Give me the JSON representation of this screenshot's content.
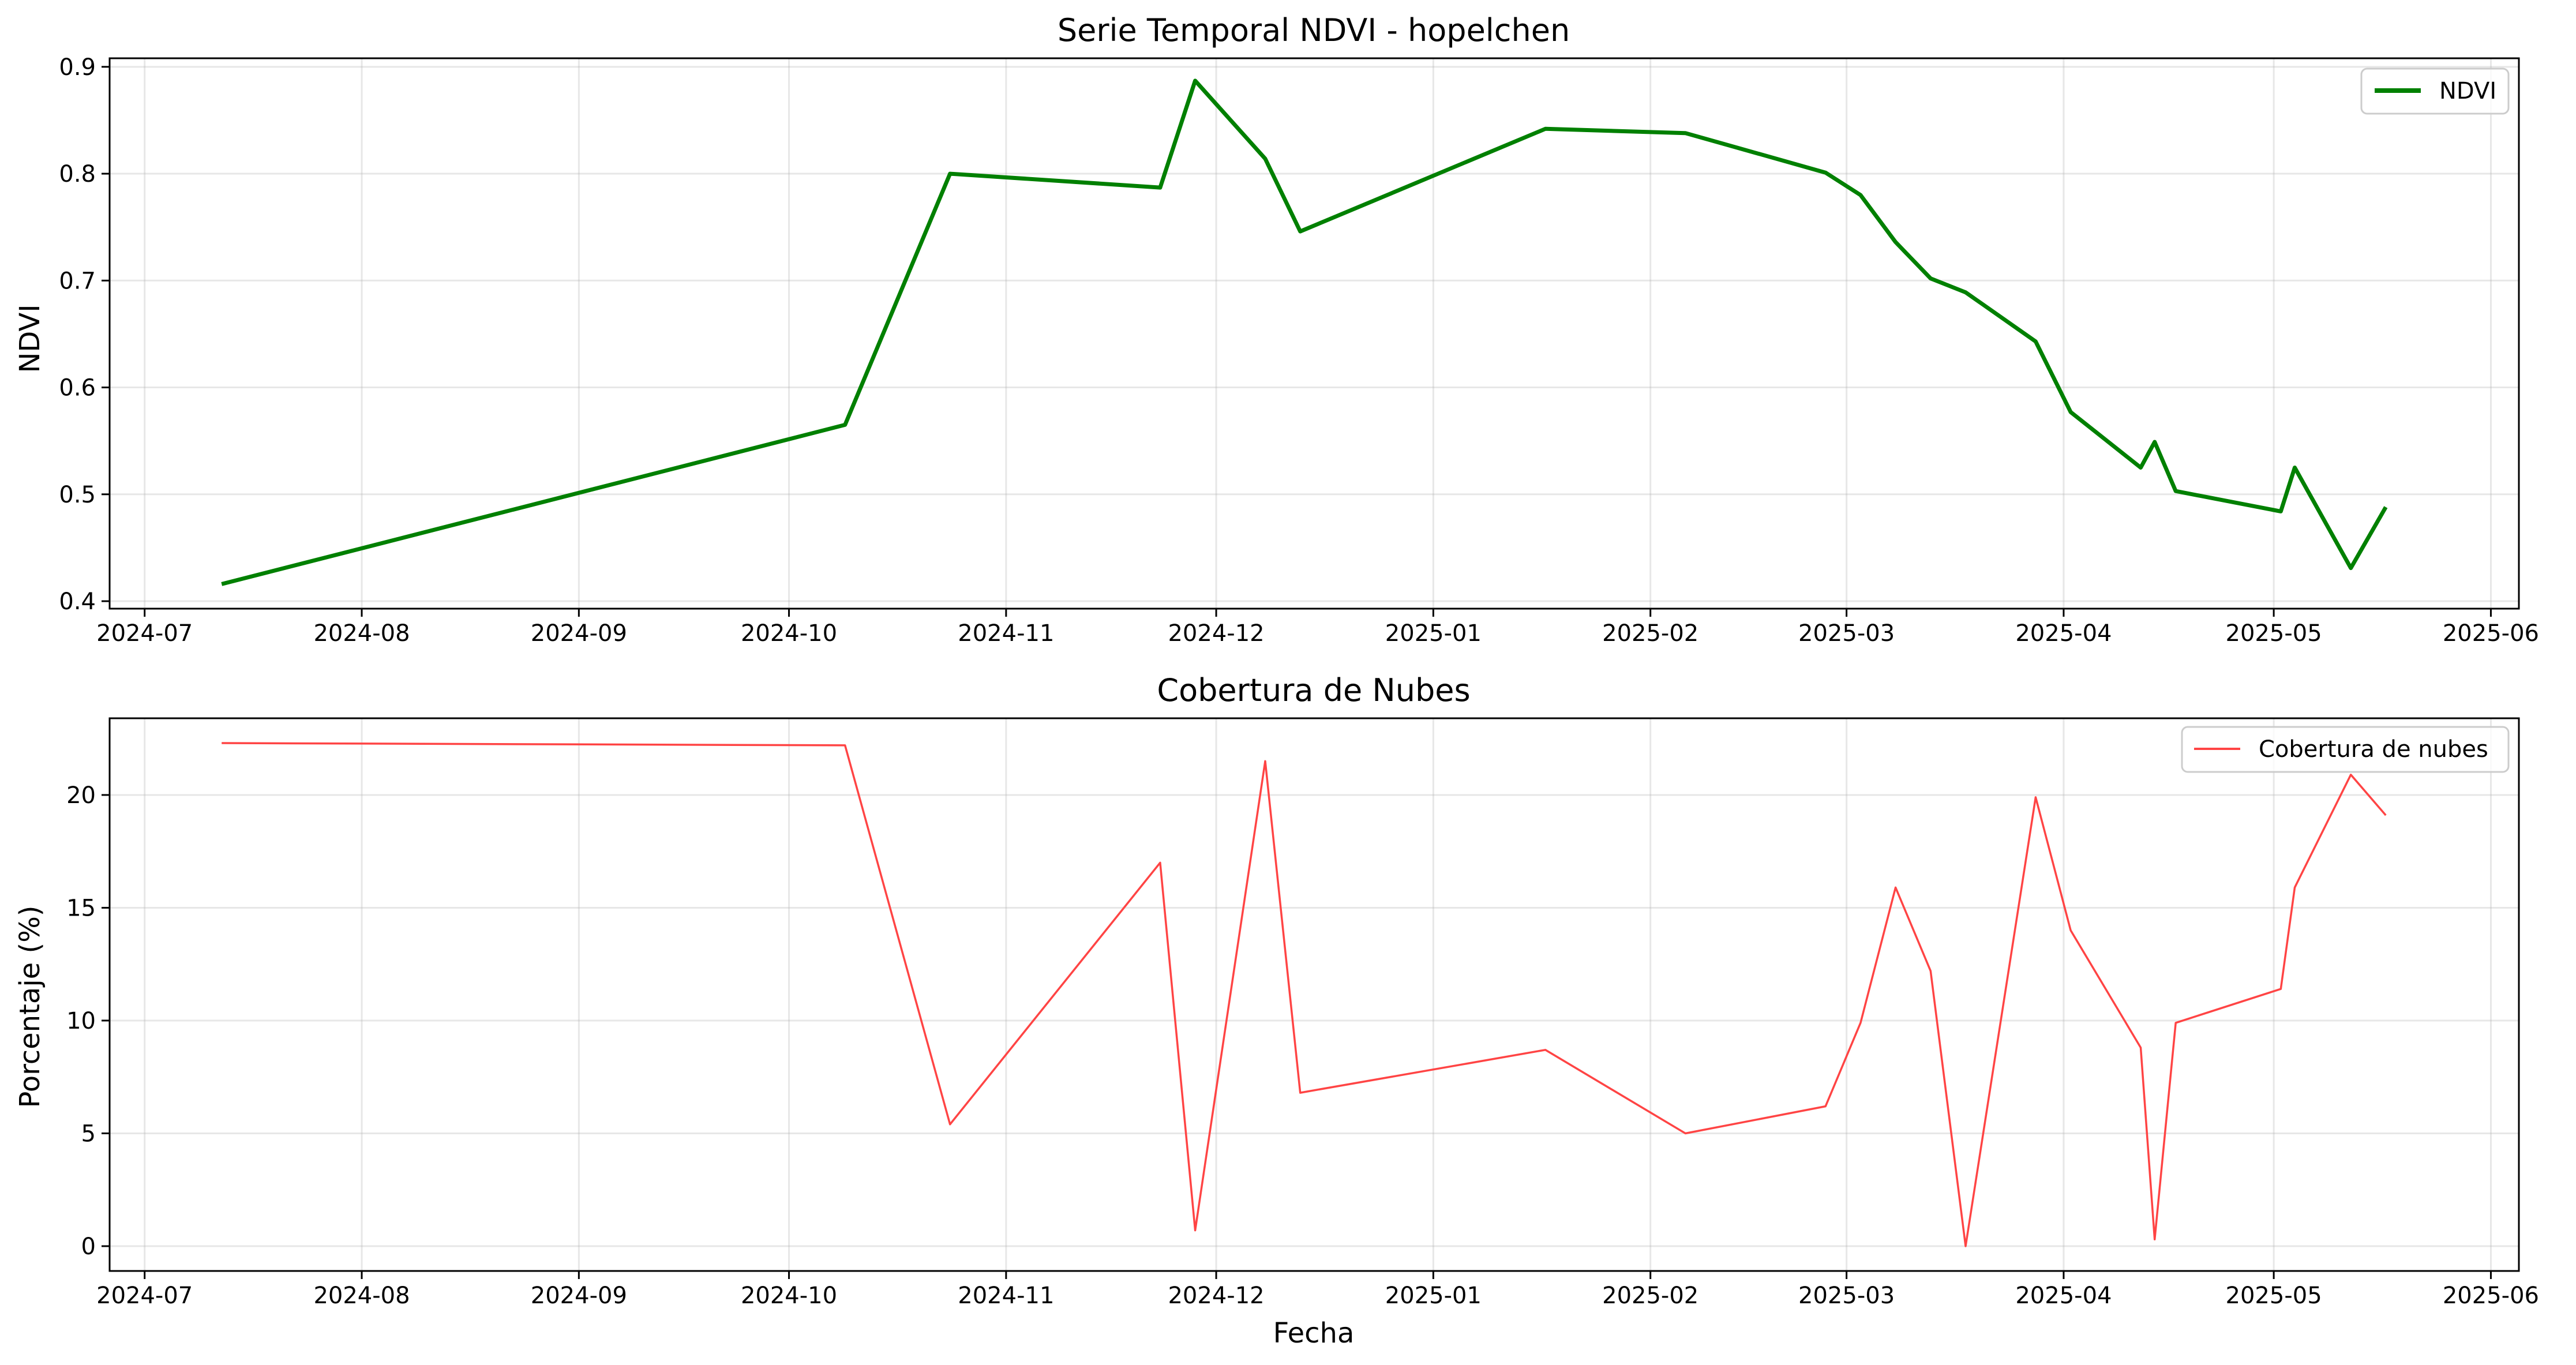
{
  "chart_data": [
    {
      "type": "line",
      "title": "Serie Temporal NDVI - hopelchen",
      "xlabel": "",
      "ylabel": "NDVI",
      "xlim": [
        "2024-06-26",
        "2025-06-05"
      ],
      "ylim": [
        0.393,
        0.908
      ],
      "grid": true,
      "legend": "top-right",
      "x_ticks": [
        "2024-07",
        "2024-08",
        "2024-09",
        "2024-10",
        "2024-11",
        "2024-12",
        "2025-01",
        "2025-02",
        "2025-03",
        "2025-04",
        "2025-05",
        "2025-06"
      ],
      "y_ticks": [
        "0.4",
        "0.5",
        "0.6",
        "0.7",
        "0.8",
        "0.9"
      ],
      "series": [
        {
          "name": "NDVI",
          "color": "#008000",
          "x": [
            "2024-07-12",
            "2024-10-09",
            "2024-10-24",
            "2024-11-23",
            "2024-11-28",
            "2024-12-08",
            "2024-12-13",
            "2025-01-17",
            "2025-02-06",
            "2025-02-26",
            "2025-03-03",
            "2025-03-08",
            "2025-03-13",
            "2025-03-18",
            "2025-03-28",
            "2025-04-02",
            "2025-04-12",
            "2025-04-14",
            "2025-04-17",
            "2025-05-02",
            "2025-05-04",
            "2025-05-12",
            "2025-05-17"
          ],
          "y": [
            0.416,
            0.565,
            0.8,
            0.787,
            0.887,
            0.814,
            0.746,
            0.842,
            0.838,
            0.801,
            0.78,
            0.736,
            0.702,
            0.689,
            0.643,
            0.577,
            0.525,
            0.549,
            0.503,
            0.484,
            0.525,
            0.431,
            0.488
          ]
        }
      ]
    },
    {
      "type": "line",
      "title": "Cobertura de Nubes",
      "xlabel": "Fecha",
      "ylabel": "Porcentaje (%)",
      "xlim": [
        "2024-06-26",
        "2025-06-05"
      ],
      "ylim": [
        -1.1,
        23.4
      ],
      "grid": true,
      "legend": "top-right",
      "x_ticks": [
        "2024-07",
        "2024-08",
        "2024-09",
        "2024-10",
        "2024-11",
        "2024-12",
        "2025-01",
        "2025-02",
        "2025-03",
        "2025-04",
        "2025-05",
        "2025-06"
      ],
      "y_ticks": [
        "0",
        "5",
        "10",
        "15",
        "20"
      ],
      "series": [
        {
          "name": "Cobertura de nubes",
          "color": "#ff4444",
          "x": [
            "2024-07-12",
            "2024-10-09",
            "2024-10-24",
            "2024-11-23",
            "2024-11-28",
            "2024-12-08",
            "2024-12-13",
            "2025-01-17",
            "2025-02-06",
            "2025-02-26",
            "2025-03-03",
            "2025-03-08",
            "2025-03-13",
            "2025-03-18",
            "2025-03-28",
            "2025-04-02",
            "2025-04-12",
            "2025-04-14",
            "2025-04-17",
            "2025-05-02",
            "2025-05-04",
            "2025-05-12",
            "2025-05-17"
          ],
          "y": [
            22.3,
            22.2,
            5.4,
            17.0,
            0.7,
            21.5,
            6.8,
            8.7,
            5.0,
            6.2,
            9.9,
            15.9,
            12.2,
            0.0,
            19.9,
            14.0,
            8.8,
            0.3,
            9.9,
            11.4,
            15.9,
            20.9,
            19.1
          ]
        }
      ]
    }
  ]
}
